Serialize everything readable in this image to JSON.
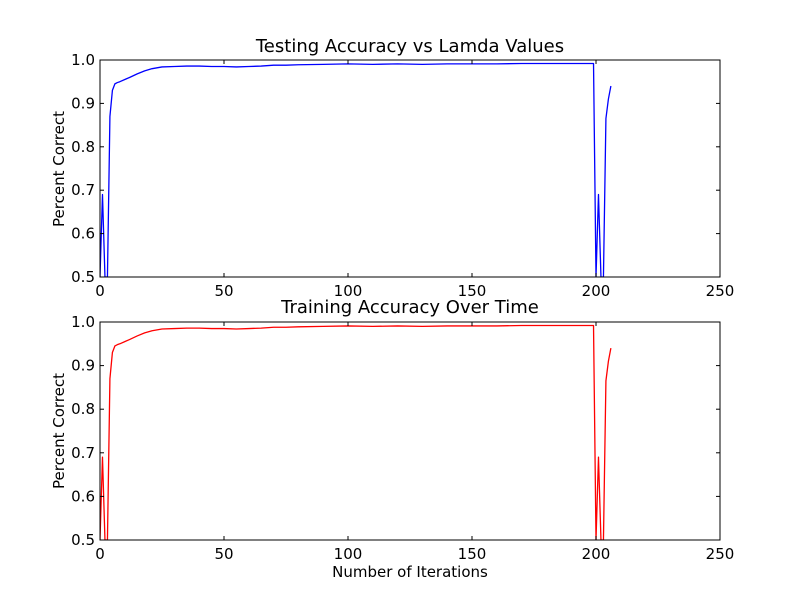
{
  "chart_data": [
    {
      "type": "line",
      "title": "Testing Accuracy vs Lamda Values",
      "xlabel": "",
      "ylabel": "Percent Correct",
      "xlim": [
        0,
        250
      ],
      "ylim": [
        0.5,
        1.0
      ],
      "xticks": [
        "0",
        "50",
        "100",
        "150",
        "200",
        "250"
      ],
      "yticks": [
        "0.5",
        "0.6",
        "0.7",
        "0.8",
        "0.9",
        "1.0"
      ],
      "grid": false,
      "color": "#0000ff",
      "series": [
        {
          "x": [
            0,
            1,
            2,
            3,
            4,
            5,
            6,
            7,
            8,
            10,
            12,
            15,
            18,
            21,
            25,
            30,
            35,
            40,
            45,
            50,
            55,
            60,
            65,
            70,
            75,
            80,
            90,
            100,
            110,
            120,
            130,
            140,
            150,
            160,
            170,
            180,
            190,
            199,
            200,
            201,
            202,
            203,
            204,
            205,
            206
          ],
          "y": [
            0.5,
            0.69,
            0.5,
            0.5,
            0.87,
            0.93,
            0.945,
            0.948,
            0.95,
            0.955,
            0.96,
            0.968,
            0.975,
            0.98,
            0.984,
            0.985,
            0.986,
            0.986,
            0.985,
            0.985,
            0.984,
            0.985,
            0.986,
            0.988,
            0.988,
            0.989,
            0.99,
            0.991,
            0.99,
            0.991,
            0.99,
            0.991,
            0.991,
            0.991,
            0.992,
            0.992,
            0.992,
            0.992,
            0.5,
            0.69,
            0.5,
            0.5,
            0.865,
            0.91,
            0.94
          ]
        }
      ]
    },
    {
      "type": "line",
      "title": "Training Accuracy Over Time",
      "xlabel": "Number of Iterations",
      "ylabel": "Percent Correct",
      "xlim": [
        0,
        250
      ],
      "ylim": [
        0.5,
        1.0
      ],
      "xticks": [
        "0",
        "50",
        "100",
        "150",
        "200",
        "250"
      ],
      "yticks": [
        "0.5",
        "0.6",
        "0.7",
        "0.8",
        "0.9",
        "1.0"
      ],
      "grid": false,
      "color": "#ff0000",
      "series": [
        {
          "x": [
            0,
            1,
            2,
            3,
            4,
            5,
            6,
            7,
            8,
            10,
            12,
            15,
            18,
            21,
            25,
            30,
            35,
            40,
            45,
            50,
            55,
            60,
            65,
            70,
            75,
            80,
            90,
            100,
            110,
            120,
            130,
            140,
            150,
            160,
            170,
            180,
            190,
            199,
            200,
            201,
            202,
            203,
            204,
            205,
            206
          ],
          "y": [
            0.5,
            0.69,
            0.5,
            0.5,
            0.87,
            0.93,
            0.945,
            0.948,
            0.95,
            0.955,
            0.96,
            0.968,
            0.975,
            0.98,
            0.984,
            0.985,
            0.986,
            0.986,
            0.985,
            0.985,
            0.984,
            0.985,
            0.986,
            0.988,
            0.988,
            0.989,
            0.99,
            0.991,
            0.99,
            0.991,
            0.99,
            0.991,
            0.991,
            0.991,
            0.992,
            0.992,
            0.992,
            0.992,
            0.5,
            0.69,
            0.5,
            0.5,
            0.865,
            0.91,
            0.94
          ]
        }
      ]
    }
  ]
}
